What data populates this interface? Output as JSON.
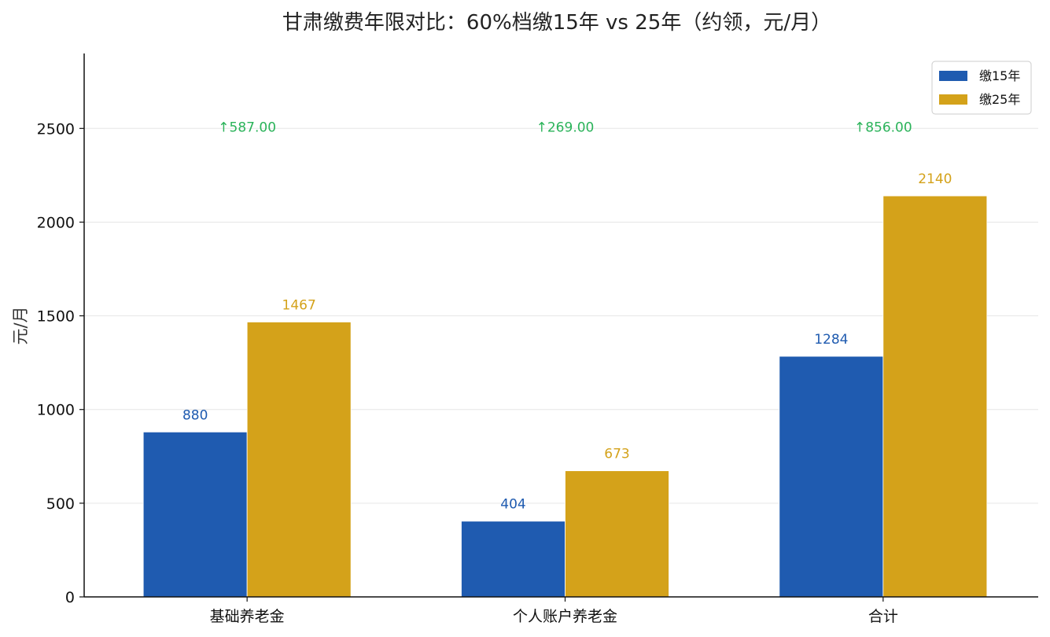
{
  "chart_data": {
    "type": "bar",
    "title": "甘肃缴费年限对比：60%档缴15年 vs 25年（约领，元/月）",
    "xlabel": "",
    "ylabel": "元/月",
    "ylim": [
      0,
      2900
    ],
    "yticks": [
      0,
      500,
      1000,
      1500,
      2000,
      2500
    ],
    "grid": "y",
    "legend_position": "top-right",
    "categories": [
      "基础养老金",
      "个人账户养老金",
      "合计"
    ],
    "series": [
      {
        "name": "缴15年",
        "color": "#1f5bb0",
        "values": [
          880,
          404,
          1284
        ]
      },
      {
        "name": "缴25年",
        "color": "#d4a21a",
        "values": [
          1467,
          673,
          2140
        ]
      }
    ],
    "annotations": {
      "color": "#2bb35a",
      "y": 2500,
      "labels": [
        "↑587.00",
        "↑269.00",
        "↑856.00"
      ]
    }
  }
}
